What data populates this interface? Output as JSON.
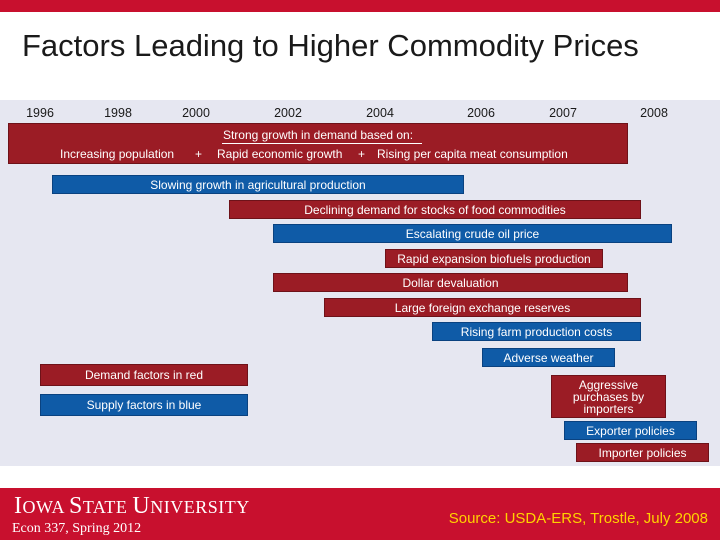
{
  "slide": {
    "title": "Factors Leading to Higher Commodity Prices",
    "colors": {
      "demand_red": "#9b1c25",
      "supply_blue": "#0f5ba7",
      "brand_red": "#c8102e",
      "source_yellow": "#ffd200"
    }
  },
  "timeline": {
    "years": [
      "1996",
      "1998",
      "2000",
      "2002",
      "2004",
      "2006",
      "2007",
      "2008"
    ]
  },
  "demand_box": {
    "heading": "Strong growth in demand based  on:",
    "item1": "Increasing population",
    "plus1": "+",
    "item2": "Rapid economic growth",
    "plus2": "+",
    "item3": "Rising per capita meat consumption"
  },
  "factors": [
    {
      "label": "Slowing growth in agricultural production",
      "type": "supply"
    },
    {
      "label": "Declining demand for stocks of food commodities",
      "type": "demand"
    },
    {
      "label": "Escalating crude oil price",
      "type": "supply"
    },
    {
      "label": "Rapid expansion biofuels production",
      "type": "demand"
    },
    {
      "label": "Dollar devaluation",
      "type": "demand"
    },
    {
      "label": "Large foreign exchange reserves",
      "type": "demand"
    },
    {
      "label": "Rising farm production costs",
      "type": "supply"
    },
    {
      "label": "Adverse weather",
      "type": "supply"
    },
    {
      "label": "Aggressive purchases by importers",
      "type": "demand"
    },
    {
      "label": "Exporter policies",
      "type": "supply"
    },
    {
      "label": "Importer policies",
      "type": "demand"
    }
  ],
  "legend": {
    "demand": "Demand factors in red",
    "supply": "Supply factors in blue"
  },
  "footer": {
    "logo_text_1": "I",
    "logo_text_2": "OWA ",
    "logo_text_3": "S",
    "logo_text_4": "TATE ",
    "logo_text_5": "U",
    "logo_text_6": "NIVERSITY",
    "course": "Econ 337, Spring 2012",
    "source": "Source: USDA-ERS, Trostle, July 2008"
  }
}
